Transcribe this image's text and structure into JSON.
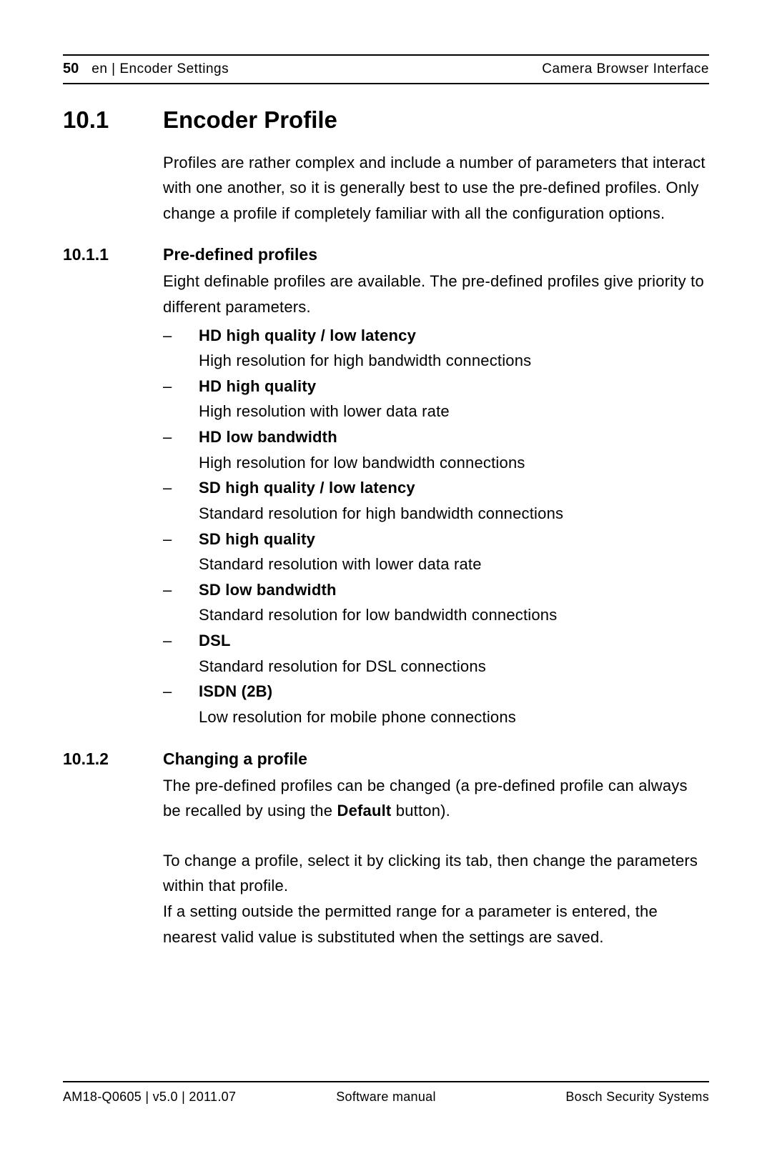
{
  "header": {
    "page_number": "50",
    "breadcrumb": "en | Encoder Settings",
    "doc_title": "Camera Browser Interface"
  },
  "section_10_1": {
    "number": "10.1",
    "title": "Encoder Profile",
    "intro": "Profiles are rather complex and include a number of parameters that interact with one another, so it is generally best to use the pre-defined profiles. Only change a profile if completely familiar with all the configuration options."
  },
  "section_10_1_1": {
    "number": "10.1.1",
    "title": "Pre-defined profiles",
    "intro": "Eight definable profiles are available. The pre-defined profiles give priority to different parameters.",
    "dash": "–",
    "profiles": [
      {
        "name": "HD high quality / low latency",
        "desc": "High resolution for high bandwidth connections"
      },
      {
        "name": "HD high quality",
        "desc": "High resolution with lower data rate"
      },
      {
        "name": "HD low bandwidth",
        "desc": "High resolution for low bandwidth connections"
      },
      {
        "name": "SD high quality / low latency",
        "desc": "Standard resolution for high bandwidth connections"
      },
      {
        "name": "SD high quality",
        "desc": "Standard resolution with lower data rate"
      },
      {
        "name": "SD low bandwidth",
        "desc": "Standard resolution for low bandwidth connections"
      },
      {
        "name": "DSL",
        "desc": "Standard resolution for DSL connections"
      },
      {
        "name": "ISDN (2B)",
        "desc": "Low resolution for mobile phone connections"
      }
    ]
  },
  "section_10_1_2": {
    "number": "10.1.2",
    "title": "Changing a profile",
    "para1_pre": "The pre-defined profiles can be changed (a pre-defined profile can always be recalled by using the ",
    "para1_bold": "Default",
    "para1_post": " button).",
    "para2": "To change a profile, select it by clicking its tab, then change the parameters within that profile.",
    "para3": "If a setting outside the permitted range for a parameter is entered, the nearest valid value is substituted when the settings are saved."
  },
  "footer": {
    "left": "AM18-Q0605 | v5.0 | 2011.07",
    "center": "Software manual",
    "right": "Bosch Security Systems"
  }
}
